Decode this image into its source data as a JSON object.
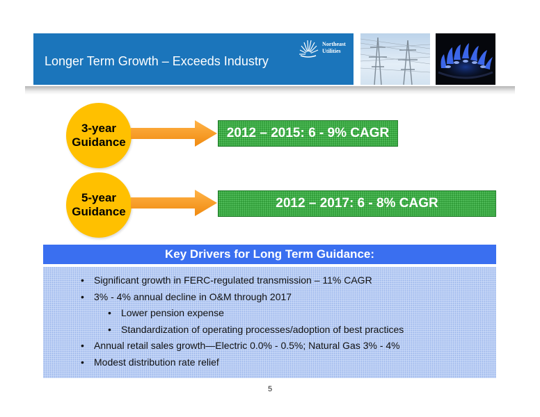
{
  "header": {
    "title": "Longer Term Growth – Exceeds Industry",
    "band_color": "#1b75bb",
    "logo": {
      "line1": "Northeast",
      "line2": "Utilities",
      "icon": "sunburst-logo-icon"
    },
    "photos": [
      "power-lines-photo",
      "gas-flame-photo"
    ]
  },
  "guidance": [
    {
      "circle_line1": "3-year",
      "circle_line2": "Guidance",
      "value": "2012 – 2015: 6 - 9% CAGR"
    },
    {
      "circle_line1": "5-year",
      "circle_line2": "Guidance",
      "value": "2012 – 2017: 6 - 8% CAGR"
    }
  ],
  "drivers": {
    "title": "Key Drivers for Long Term Guidance:",
    "items": [
      {
        "text": "Significant growth in FERC-regulated transmission – 11% CAGR",
        "level": 1
      },
      {
        "text": "3% - 4% annual decline in O&M through 2017",
        "level": 1
      },
      {
        "text": "Lower pension expense",
        "level": 2
      },
      {
        "text": "Standardization of operating processes/adoption of best practices",
        "level": 2
      },
      {
        "text": "Annual retail sales growth—Electric 0.0% - 0.5%; Natural Gas 3% - 4%",
        "level": 1
      },
      {
        "text": "Modest distribution rate relief",
        "level": 1
      }
    ]
  },
  "colors": {
    "circle": "#ffc000",
    "arrow": "#f7941d",
    "green_box": "#2e9a36",
    "drivers_header": "#3a6ff0",
    "drivers_body": "#c5d6f6"
  },
  "page_number": "5"
}
